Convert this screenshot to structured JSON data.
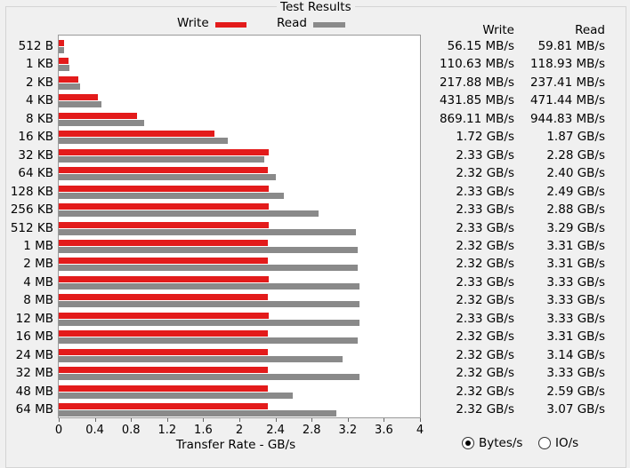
{
  "panel": {
    "title": "Test Results"
  },
  "legend": {
    "write_label": "Write",
    "read_label": "Read"
  },
  "columns": {
    "write_header": "Write",
    "read_header": "Read"
  },
  "colors": {
    "write": "#e31b1b",
    "read": "#8a8a8a"
  },
  "radio": {
    "bytes_label": "Bytes/s",
    "ios_label": "IO/s",
    "selected": "bytes"
  },
  "rows": [
    {
      "size": "512 B",
      "write": "56.15 MB/s",
      "read": "59.81 MB/s"
    },
    {
      "size": "1 KB",
      "write": "110.63 MB/s",
      "read": "118.93 MB/s"
    },
    {
      "size": "2 KB",
      "write": "217.88 MB/s",
      "read": "237.41 MB/s"
    },
    {
      "size": "4 KB",
      "write": "431.85 MB/s",
      "read": "471.44 MB/s"
    },
    {
      "size": "8 KB",
      "write": "869.11 MB/s",
      "read": "944.83 MB/s"
    },
    {
      "size": "16 KB",
      "write": "1.72 GB/s",
      "read": "1.87 GB/s"
    },
    {
      "size": "32 KB",
      "write": "2.33 GB/s",
      "read": "2.28 GB/s"
    },
    {
      "size": "64 KB",
      "write": "2.32 GB/s",
      "read": "2.40 GB/s"
    },
    {
      "size": "128 KB",
      "write": "2.33 GB/s",
      "read": "2.49 GB/s"
    },
    {
      "size": "256 KB",
      "write": "2.33 GB/s",
      "read": "2.88 GB/s"
    },
    {
      "size": "512 KB",
      "write": "2.33 GB/s",
      "read": "3.29 GB/s"
    },
    {
      "size": "1 MB",
      "write": "2.32 GB/s",
      "read": "3.31 GB/s"
    },
    {
      "size": "2 MB",
      "write": "2.32 GB/s",
      "read": "3.31 GB/s"
    },
    {
      "size": "4 MB",
      "write": "2.33 GB/s",
      "read": "3.33 GB/s"
    },
    {
      "size": "8 MB",
      "write": "2.32 GB/s",
      "read": "3.33 GB/s"
    },
    {
      "size": "12 MB",
      "write": "2.33 GB/s",
      "read": "3.33 GB/s"
    },
    {
      "size": "16 MB",
      "write": "2.32 GB/s",
      "read": "3.31 GB/s"
    },
    {
      "size": "24 MB",
      "write": "2.32 GB/s",
      "read": "3.14 GB/s"
    },
    {
      "size": "32 MB",
      "write": "2.32 GB/s",
      "read": "3.33 GB/s"
    },
    {
      "size": "48 MB",
      "write": "2.32 GB/s",
      "read": "2.59 GB/s"
    },
    {
      "size": "64 MB",
      "write": "2.32 GB/s",
      "read": "3.07 GB/s"
    }
  ],
  "chart_data": {
    "type": "bar",
    "orientation": "horizontal",
    "categories": [
      "512 B",
      "1 KB",
      "2 KB",
      "4 KB",
      "8 KB",
      "16 KB",
      "32 KB",
      "64 KB",
      "128 KB",
      "256 KB",
      "512 KB",
      "1 MB",
      "2 MB",
      "4 MB",
      "8 MB",
      "12 MB",
      "16 MB",
      "24 MB",
      "32 MB",
      "48 MB",
      "64 MB"
    ],
    "series": [
      {
        "name": "Write",
        "values": [
          0.05615,
          0.11063,
          0.21788,
          0.43185,
          0.86911,
          1.72,
          2.33,
          2.32,
          2.33,
          2.33,
          2.33,
          2.32,
          2.32,
          2.33,
          2.32,
          2.33,
          2.32,
          2.32,
          2.32,
          2.32,
          2.32
        ]
      },
      {
        "name": "Read",
        "values": [
          0.05981,
          0.11893,
          0.23741,
          0.47144,
          0.94483,
          1.87,
          2.28,
          2.4,
          2.49,
          2.88,
          3.29,
          3.31,
          3.31,
          3.33,
          3.33,
          3.33,
          3.31,
          3.14,
          3.33,
          2.59,
          3.07
        ]
      }
    ],
    "xlabel": "Transfer Rate - GB/s",
    "ylabel": "",
    "xlim": [
      0,
      4
    ],
    "xticks": [
      "0",
      "0.4",
      "0.8",
      "1.2",
      "1.6",
      "2",
      "2.4",
      "2.8",
      "3.2",
      "3.6",
      "4"
    ],
    "xtick_values": [
      0,
      0.4,
      0.8,
      1.2,
      1.6,
      2,
      2.4,
      2.8,
      3.2,
      3.6,
      4
    ],
    "legend": "top",
    "grid": false
  }
}
